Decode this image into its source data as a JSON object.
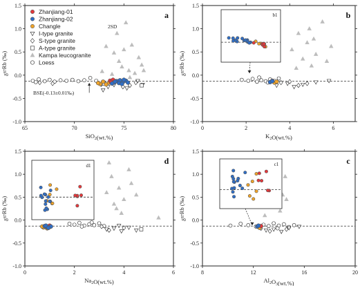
{
  "colors": {
    "zhanjiang01": "#e5383b",
    "zhanjiang02": "#2f6ec6",
    "changle": "#f0a42a",
    "kampa": "#bdbdbd",
    "open": "#ffffff",
    "stroke": "#222222"
  },
  "legend": {
    "items": [
      {
        "label": "Zhanjiang-01",
        "marker": "circle",
        "color": "#e5383b"
      },
      {
        "label": "Zhanjiang-02",
        "marker": "circle",
        "color": "#2f6ec6"
      },
      {
        "label": "Changle",
        "marker": "circle",
        "color": "#f0a42a"
      },
      {
        "label": "I-type granite",
        "marker": "triangle-down",
        "color": "#ffffff"
      },
      {
        "label": "S-type granite",
        "marker": "diamond",
        "color": "#ffffff"
      },
      {
        "label": "A-type granite",
        "marker": "square",
        "color": "#ffffff"
      },
      {
        "label": "Kampa leucogranite",
        "marker": "triangle-up",
        "color": "#bdbdbd"
      },
      {
        "label": "Loess",
        "marker": "circle",
        "color": "#ffffff"
      }
    ],
    "sigma_note": "2SD",
    "bse_note": "BSE(-0.13±0.01‰)"
  },
  "chart_data": [
    {
      "type": "scatter",
      "panel_label": "a",
      "xlabel": "SiO2(wt.%)",
      "ylabel": "δ87Rb (‰)",
      "xlim": [
        65,
        80
      ],
      "ylim": [
        -1.0,
        1.5
      ],
      "xticks": [
        65,
        70,
        75,
        80
      ],
      "yticks": [
        -1.0,
        -0.5,
        0.0,
        0.5,
        1.0,
        1.5
      ],
      "ref_y": -0.13,
      "series": [
        {
          "key": "kampa",
          "marker": "triangle-up",
          "points": [
            [
              73.2,
              0.62
            ],
            [
              74.0,
              0.48
            ],
            [
              74.5,
              0.3
            ],
            [
              74.8,
              0.18
            ],
            [
              75.2,
              1.13
            ],
            [
              75.5,
              0.1
            ],
            [
              75.8,
              0.65
            ],
            [
              76.1,
              0.04
            ],
            [
              76.5,
              0.38
            ],
            [
              77.0,
              0.1
            ],
            [
              73.8,
              0.02
            ],
            [
              74.3,
              0.9
            ],
            [
              75.0,
              0.55
            ],
            [
              76.8,
              0.22
            ],
            [
              72.8,
              0.08
            ],
            [
              75.6,
              -0.05
            ]
          ]
        },
        {
          "key": "open_circle",
          "marker": "circle",
          "points": [
            [
              65.8,
              -0.12
            ],
            [
              66.4,
              -0.09
            ],
            [
              67.0,
              -0.13
            ],
            [
              67.5,
              -0.1
            ],
            [
              68.0,
              -0.14
            ],
            [
              68.6,
              -0.11
            ],
            [
              69.2,
              -0.12
            ],
            [
              69.8,
              -0.1
            ],
            [
              70.4,
              -0.13
            ],
            [
              71.0,
              -0.11
            ],
            [
              71.6,
              -0.06
            ],
            [
              72.2,
              -0.12
            ],
            [
              66.1,
              -0.15
            ]
          ]
        },
        {
          "key": "s_type",
          "marker": "diamond",
          "points": [
            [
              66.5,
              -0.16
            ],
            [
              67.8,
              -0.18
            ],
            [
              72.7,
              -0.2
            ],
            [
              73.6,
              -0.14
            ],
            [
              75.6,
              -0.22
            ],
            [
              76.2,
              -0.16
            ],
            [
              74.9,
              -0.25
            ]
          ]
        },
        {
          "key": "i_type",
          "marker": "triangle-down",
          "points": [
            [
              72.9,
              -0.32
            ],
            [
              74.0,
              -0.21
            ],
            [
              75.3,
              -0.28
            ],
            [
              76.4,
              -0.12
            ],
            [
              73.4,
              -0.25
            ],
            [
              76.9,
              -0.2
            ]
          ]
        },
        {
          "key": "a_type",
          "marker": "square",
          "points": [
            [
              76.8,
              -0.22
            ],
            [
              73.0,
              -0.18
            ]
          ]
        },
        {
          "key": "changle",
          "marker": "circle",
          "points": [
            [
              72.6,
              -0.19
            ],
            [
              72.9,
              -0.14
            ],
            [
              73.2,
              -0.2
            ],
            [
              73.5,
              -0.16
            ],
            [
              72.4,
              -0.17
            ]
          ]
        },
        {
          "key": "zhanjiang01",
          "marker": "circle",
          "points": [
            [
              73.6,
              -0.12
            ],
            [
              73.9,
              -0.1
            ],
            [
              74.2,
              -0.13
            ],
            [
              73.7,
              -0.15
            ]
          ]
        },
        {
          "key": "zhanjiang02",
          "marker": "circle",
          "points": [
            [
              74.0,
              -0.16
            ],
            [
              74.3,
              -0.13
            ],
            [
              74.6,
              -0.11
            ],
            [
              74.9,
              -0.15
            ],
            [
              75.2,
              -0.12
            ],
            [
              74.5,
              -0.17
            ],
            [
              75.0,
              -0.1
            ],
            [
              74.1,
              -0.14
            ],
            [
              74.8,
              -0.19
            ],
            [
              75.4,
              -0.16
            ],
            [
              73.8,
              -0.18
            ]
          ]
        }
      ]
    },
    {
      "type": "scatter",
      "panel_label": "b",
      "xlabel": "K2O(wt.%)",
      "ylabel": "δ87Rb (‰)",
      "xlim": [
        0,
        7
      ],
      "ylim": [
        -1.0,
        1.5
      ],
      "xticks": [
        0,
        2,
        4,
        6
      ],
      "yticks": [
        -1.0,
        -0.5,
        0.0,
        0.5,
        1.0,
        1.5
      ],
      "ref_y": -0.13,
      "inset_label": "b1",
      "series": [
        {
          "key": "kampa",
          "marker": "triangle-up",
          "points": [
            [
              4.1,
              0.55
            ],
            [
              4.4,
              0.9
            ],
            [
              4.6,
              0.35
            ],
            [
              4.8,
              0.7
            ],
            [
              5.0,
              0.2
            ],
            [
              5.2,
              0.45
            ],
            [
              5.5,
              1.15
            ],
            [
              5.7,
              0.3
            ],
            [
              5.9,
              0.62
            ],
            [
              4.3,
              0.15
            ],
            [
              5.1,
              0.78
            ],
            [
              4.9,
              1.0
            ]
          ]
        },
        {
          "key": "open_circle",
          "marker": "circle",
          "points": [
            [
              1.8,
              -0.1
            ],
            [
              2.1,
              -0.12
            ],
            [
              2.3,
              -0.08
            ],
            [
              2.5,
              -0.14
            ],
            [
              2.7,
              -0.11
            ],
            [
              2.9,
              -0.13
            ],
            [
              3.1,
              -0.09
            ],
            [
              3.3,
              -0.12
            ],
            [
              3.5,
              -0.07
            ],
            [
              3.0,
              -0.16
            ],
            [
              2.6,
              -0.05
            ]
          ]
        },
        {
          "key": "i_type",
          "marker": "triangle-down",
          "points": [
            [
              3.4,
              -0.22
            ],
            [
              3.9,
              -0.18
            ],
            [
              4.2,
              -0.25
            ],
            [
              4.6,
              -0.2
            ],
            [
              5.2,
              -0.15
            ],
            [
              5.8,
              -0.12
            ]
          ]
        },
        {
          "key": "s_type",
          "marker": "diamond",
          "points": [
            [
              3.6,
              -0.16
            ],
            [
              4.0,
              -0.14
            ],
            [
              4.4,
              -0.22
            ],
            [
              4.8,
              -0.18
            ]
          ]
        },
        {
          "key": "changle",
          "marker": "circle",
          "points": [
            [
              3.3,
              -0.16
            ],
            [
              3.4,
              -0.14
            ]
          ]
        },
        {
          "key": "zhanjiang01",
          "marker": "circle",
          "points": [
            [
              3.2,
              -0.12
            ]
          ]
        },
        {
          "key": "zhanjiang02",
          "marker": "circle",
          "points": [
            [
              3.1,
              -0.15
            ],
            [
              3.2,
              -0.13
            ]
          ]
        }
      ]
    },
    {
      "type": "scatter",
      "panel_label": "d",
      "xlabel": "Na2O(wt.%)",
      "ylabel": "δ87Rb (‰)",
      "xlim": [
        0,
        6
      ],
      "ylim": [
        -1.0,
        1.5
      ],
      "xticks": [
        0,
        2,
        4,
        6
      ],
      "yticks": [
        -1.0,
        -0.5,
        0.0,
        0.5,
        1.0,
        1.5
      ],
      "ref_y": -0.13,
      "inset_label": "d1",
      "series": [
        {
          "key": "kampa",
          "marker": "triangle-up",
          "points": [
            [
              3.3,
              0.6
            ],
            [
              3.5,
              0.95
            ],
            [
              3.6,
              0.35
            ],
            [
              3.8,
              0.7
            ],
            [
              3.9,
              0.15
            ],
            [
              4.0,
              0.45
            ],
            [
              4.2,
              1.1
            ],
            [
              4.3,
              0.8
            ],
            [
              3.7,
              0.25
            ],
            [
              4.5,
              0.55
            ],
            [
              5.4,
              0.05
            ],
            [
              3.4,
              1.25
            ]
          ]
        },
        {
          "key": "open_circle",
          "marker": "circle",
          "points": [
            [
              1.8,
              -0.08
            ],
            [
              2.0,
              -0.1
            ],
            [
              2.2,
              -0.06
            ],
            [
              2.4,
              -0.12
            ],
            [
              2.6,
              -0.09
            ],
            [
              2.8,
              -0.11
            ],
            [
              3.0,
              -0.07
            ],
            [
              2.3,
              -0.14
            ],
            [
              2.7,
              -0.05
            ],
            [
              3.2,
              -0.13
            ]
          ]
        },
        {
          "key": "i_type",
          "marker": "triangle-down",
          "points": [
            [
              3.3,
              -0.2
            ],
            [
              3.6,
              -0.18
            ],
            [
              3.9,
              -0.24
            ],
            [
              4.2,
              -0.16
            ],
            [
              4.5,
              -0.22
            ],
            [
              3.8,
              -0.12
            ]
          ]
        },
        {
          "key": "s_type",
          "marker": "diamond",
          "points": [
            [
              3.1,
              -0.14
            ],
            [
              3.4,
              -0.22
            ],
            [
              4.0,
              -0.17
            ]
          ]
        },
        {
          "key": "a_type",
          "marker": "square",
          "points": [
            [
              4.7,
              -0.2
            ]
          ]
        },
        {
          "key": "changle",
          "marker": "circle",
          "points": [
            [
              0.75,
              -0.16
            ],
            [
              0.85,
              -0.15
            ],
            [
              0.9,
              -0.18
            ],
            [
              0.7,
              -0.14
            ]
          ]
        },
        {
          "key": "zhanjiang01",
          "marker": "circle",
          "points": [
            [
              0.95,
              -0.14
            ],
            [
              1.0,
              -0.12
            ]
          ]
        },
        {
          "key": "zhanjiang02",
          "marker": "circle",
          "points": [
            [
              0.8,
              -0.13
            ],
            [
              0.9,
              -0.16
            ],
            [
              1.0,
              -0.15
            ],
            [
              0.85,
              -0.12
            ],
            [
              1.05,
              -0.14
            ],
            [
              0.95,
              -0.17
            ]
          ]
        }
      ]
    },
    {
      "type": "scatter",
      "panel_label": "c",
      "xlabel": "Al2O3(wt.%)",
      "ylabel": "δ87Rb (‰)",
      "xlim": [
        8,
        20
      ],
      "ylim": [
        -1.0,
        1.5
      ],
      "xticks": [
        8,
        12,
        16,
        20
      ],
      "yticks": [
        -1.0,
        -0.5,
        0.0,
        0.5,
        1.0,
        1.5
      ],
      "ref_y": -0.13,
      "inset_label": "c1",
      "series": [
        {
          "key": "kampa",
          "marker": "triangle-up",
          "points": [
            [
              13.2,
              0.7
            ],
            [
              13.5,
              1.05
            ],
            [
              13.7,
              0.4
            ],
            [
              13.9,
              0.85
            ],
            [
              14.1,
              0.2
            ],
            [
              14.3,
              0.55
            ],
            [
              14.5,
              0.95
            ],
            [
              13.4,
              1.2
            ],
            [
              14.0,
              0.3
            ],
            [
              13.8,
              0.62
            ],
            [
              14.6,
              0.45
            ],
            [
              12.9,
              0.1
            ]
          ]
        },
        {
          "key": "open_circle",
          "marker": "circle",
          "points": [
            [
              10.2,
              -0.12
            ],
            [
              11.0,
              -0.08
            ],
            [
              11.6,
              -0.11
            ],
            [
              12.2,
              -0.14
            ],
            [
              12.8,
              -0.1
            ],
            [
              13.2,
              -0.13
            ],
            [
              13.6,
              -0.07
            ],
            [
              14.0,
              -0.12
            ],
            [
              14.4,
              -0.09
            ],
            [
              14.8,
              -0.15
            ],
            [
              15.2,
              -0.11
            ],
            [
              12.5,
              -0.16
            ],
            [
              13.9,
              -0.18
            ]
          ]
        },
        {
          "key": "i_type",
          "marker": "triangle-down",
          "points": [
            [
              13.0,
              -0.22
            ],
            [
              13.6,
              -0.2
            ],
            [
              14.2,
              -0.25
            ],
            [
              14.8,
              -0.17
            ],
            [
              15.6,
              -0.14
            ]
          ]
        },
        {
          "key": "s_type",
          "marker": "diamond",
          "points": [
            [
              12.6,
              -0.18
            ],
            [
              13.3,
              -0.24
            ],
            [
              14.6,
              -0.2
            ]
          ]
        },
        {
          "key": "changle",
          "marker": "circle",
          "points": [
            [
              12.4,
              -0.15
            ],
            [
              12.5,
              -0.17
            ]
          ]
        },
        {
          "key": "zhanjiang01",
          "marker": "circle",
          "points": [
            [
              12.6,
              -0.13
            ]
          ]
        },
        {
          "key": "zhanjiang02",
          "marker": "circle",
          "points": [
            [
              12.3,
              -0.14
            ],
            [
              12.4,
              -0.12
            ]
          ]
        }
      ]
    }
  ]
}
